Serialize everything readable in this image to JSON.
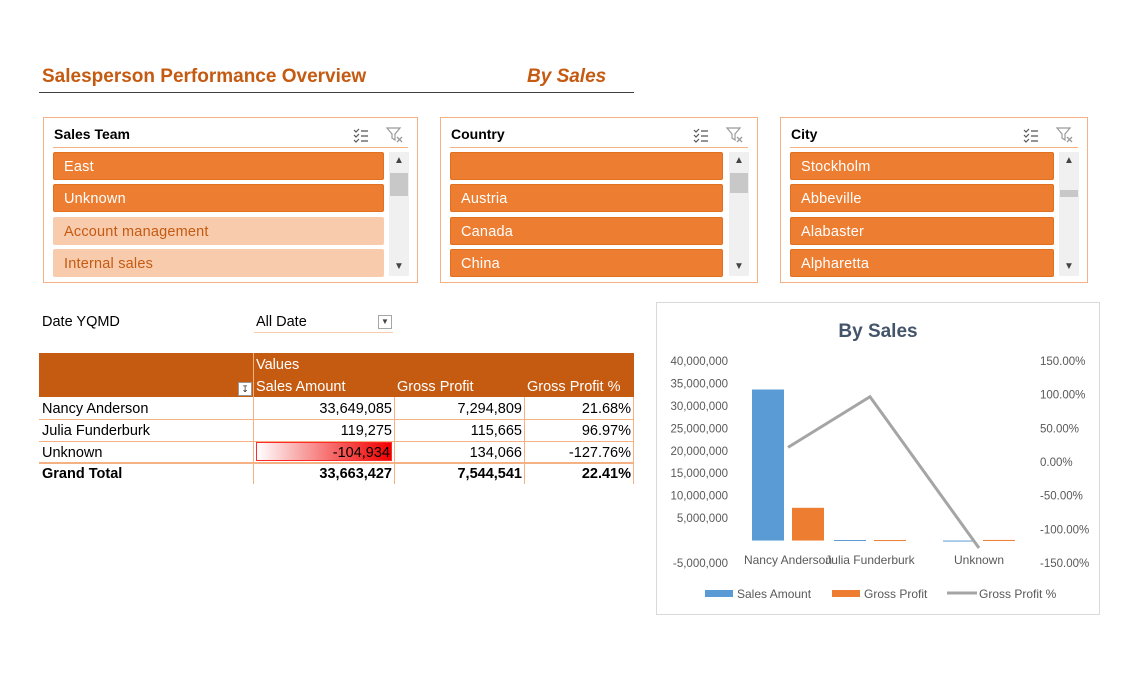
{
  "header": {
    "title": "Salesperson Performance Overview",
    "subtitle": "By Sales"
  },
  "slicers": [
    {
      "title": "Sales Team",
      "icons": [
        "multi-select-icon",
        "clear-filter-icon"
      ],
      "items": [
        {
          "label": "East",
          "selected": true
        },
        {
          "label": "Unknown",
          "selected": true
        },
        {
          "label": "Account management",
          "selected": false
        },
        {
          "label": "Internal sales",
          "selected": false
        }
      ]
    },
    {
      "title": "Country",
      "icons": [
        "multi-select-icon",
        "clear-filter-icon"
      ],
      "items": [
        {
          "label": "",
          "selected": true
        },
        {
          "label": "Austria",
          "selected": true
        },
        {
          "label": "Canada",
          "selected": true
        },
        {
          "label": "China",
          "selected": true
        }
      ]
    },
    {
      "title": "City",
      "icons": [
        "multi-select-icon",
        "clear-filter-icon"
      ],
      "items": [
        {
          "label": "Stockholm",
          "selected": true
        },
        {
          "label": "Abbeville",
          "selected": true
        },
        {
          "label": "Alabaster",
          "selected": true
        },
        {
          "label": "Alpharetta",
          "selected": true
        }
      ]
    }
  ],
  "date_filter": {
    "label": "Date YQMD",
    "value": "All Date"
  },
  "pivot": {
    "values_label": "Values",
    "columns": [
      "Sales Amount",
      "Gross Profit",
      "Gross Profit %"
    ],
    "rows": [
      {
        "name": "Nancy Anderson",
        "sales": "33,649,085",
        "profit": "7,294,809",
        "pct": "21.68%"
      },
      {
        "name": "Julia Funderburk",
        "sales": "119,275",
        "profit": "115,665",
        "pct": "96.97%"
      },
      {
        "name": "Unknown",
        "sales": "-104,934",
        "profit": "134,066",
        "pct": "-127.76%"
      }
    ],
    "total": {
      "name": "Grand Total",
      "sales": "33,663,427",
      "profit": "7,544,541",
      "pct": "22.41%"
    }
  },
  "chart_data": {
    "type": "bar",
    "title": "By Sales",
    "categories": [
      "Nancy Anderson",
      "Julia Funderburk",
      "Unknown"
    ],
    "series": [
      {
        "name": "Sales Amount",
        "kind": "bar",
        "axis": "left",
        "color": "#5B9BD5",
        "values": [
          33649085,
          119275,
          -104934
        ]
      },
      {
        "name": "Gross Profit",
        "kind": "bar",
        "axis": "left",
        "color": "#ED7D31",
        "values": [
          7294809,
          115665,
          134066
        ]
      },
      {
        "name": "Gross Profit %",
        "kind": "line",
        "axis": "right",
        "color": "#A5A5A5",
        "values": [
          21.68,
          96.97,
          -127.76
        ]
      }
    ],
    "y_left": {
      "min": -5000000,
      "max": 40000000,
      "step": 5000000,
      "tick_labels": [
        "-5,000,000",
        "",
        "5,000,000",
        "10,000,000",
        "15,000,000",
        "20,000,000",
        "25,000,000",
        "30,000,000",
        "35,000,000",
        "40,000,000"
      ]
    },
    "y_right": {
      "min": -150,
      "max": 150,
      "step": 50,
      "tick_labels": [
        "-150.00%",
        "-100.00%",
        "-50.00%",
        "0.00%",
        "50.00%",
        "100.00%",
        "150.00%"
      ]
    },
    "legend_position": "bottom",
    "grid": false
  }
}
